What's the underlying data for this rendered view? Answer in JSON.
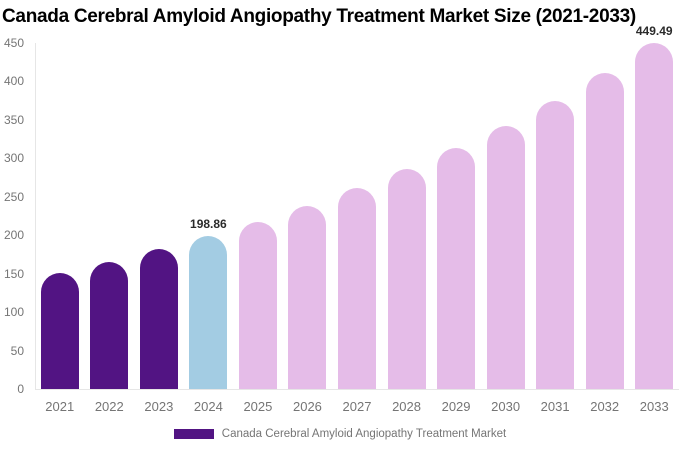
{
  "chart_data": {
    "type": "bar",
    "title": "Canada Cerebral Amyloid Angiopathy Treatment Market Size (2021-2033)",
    "xlabel": "",
    "ylabel": "",
    "categories": [
      "2021",
      "2022",
      "2023",
      "2024",
      "2025",
      "2026",
      "2027",
      "2028",
      "2029",
      "2030",
      "2031",
      "2032",
      "2033"
    ],
    "values": [
      151.5,
      165.8,
      181.6,
      198.86,
      217.7,
      238.4,
      261.0,
      285.8,
      312.9,
      342.6,
      375.1,
      410.7,
      449.49
    ],
    "bar_roles": [
      "historical",
      "historical",
      "historical",
      "current",
      "forecast",
      "forecast",
      "forecast",
      "forecast",
      "forecast",
      "forecast",
      "forecast",
      "forecast",
      "forecast"
    ],
    "value_labels": {
      "2024": "198.86",
      "2033": "449.49"
    },
    "ylim": [
      0,
      450
    ],
    "ytick_labels": [
      "0",
      "50",
      "100",
      "150",
      "200",
      "250",
      "300",
      "350",
      "400",
      "450"
    ],
    "grid": false,
    "legend_position": "bottom"
  },
  "colors": {
    "historical": "#521483",
    "current": "#a3cce3",
    "forecast": "#e5bce8",
    "axis_line": "#e6e6e6",
    "tick_text": "#757575",
    "value_label": "#2b2b2b"
  },
  "legend": {
    "label": "Canada Cerebral Amyloid Angiopathy Treatment Market",
    "swatch_color": "#521483"
  }
}
